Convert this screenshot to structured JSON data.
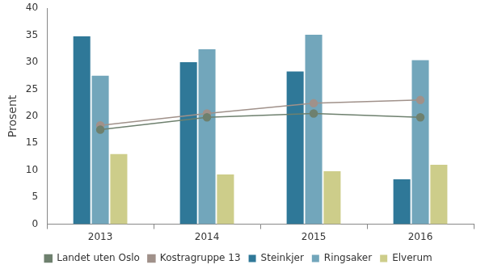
{
  "chart_data": {
    "type": "bar",
    "y_label": "Prosent",
    "categories": [
      "2013",
      "2014",
      "2015",
      "2016"
    ],
    "series": [
      {
        "name": "Steinkjer",
        "color": "#2f7898",
        "values": [
          34.8,
          30.0,
          28.3,
          8.3
        ]
      },
      {
        "name": "Ringsaker",
        "color": "#72a6bb",
        "values": [
          27.5,
          32.4,
          35.1,
          30.4
        ]
      },
      {
        "name": "Elverum",
        "color": "#cdcd8a",
        "values": [
          13.0,
          9.2,
          9.8,
          11.0
        ]
      },
      {
        "name": "Landet uten Oslo",
        "color": "#6e806e",
        "type": "line",
        "marker": "circle",
        "values": [
          17.5,
          19.8,
          20.5,
          19.8
        ]
      },
      {
        "name": "Kostragruppe 13",
        "color": "#a0918a",
        "type": "line",
        "marker": "circle",
        "values": [
          18.3,
          20.5,
          22.4,
          23.0
        ]
      }
    ],
    "ylim": [
      0,
      40
    ],
    "yticks": [
      0,
      5,
      10,
      15,
      20,
      25,
      30,
      35,
      40
    ],
    "grid": false,
    "legend": "bottom"
  }
}
